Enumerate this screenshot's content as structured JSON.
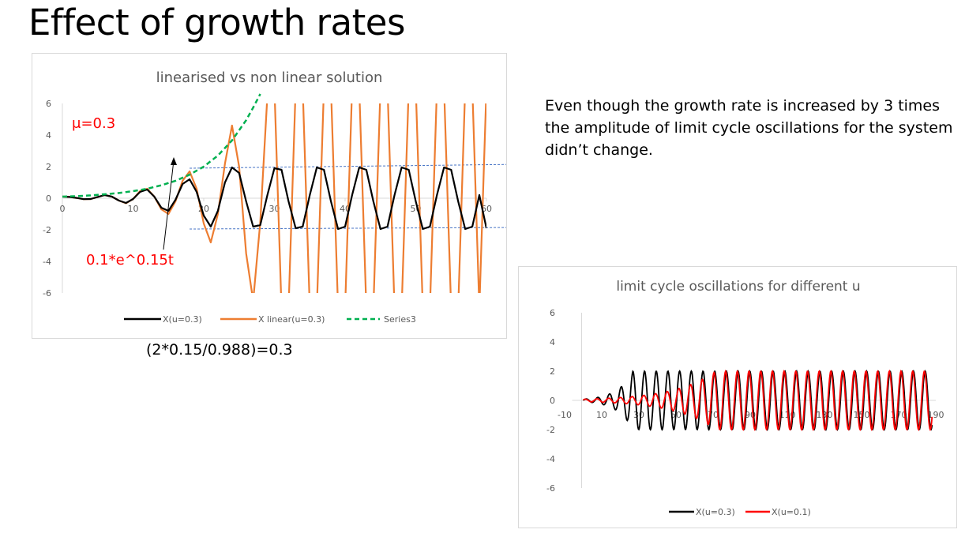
{
  "slide": {
    "title": "Effect of growth rates",
    "note": "Even though the growth rate is increased by 3 times the amplitude of limit cycle oscillations for the system didn’t change.",
    "formula": "(2*0.15/0.988)=0.3"
  },
  "colors": {
    "black_series": "#000000",
    "orange_series": "#ed7d31",
    "green_series": "#00b050",
    "red_series": "#ff0000",
    "annotation_red": "#ff0000",
    "dashed_blue": "#4472c4",
    "axis_text": "#595959",
    "gridline": "#d9d9d9"
  },
  "chart_data": [
    {
      "type": "line",
      "title": "linearised vs non linear solution",
      "xlabel": "",
      "ylabel": "",
      "xlim": [
        0,
        60
      ],
      "ylim": [
        -6,
        6
      ],
      "x_ticks": [
        0,
        10,
        20,
        30,
        40,
        50,
        60
      ],
      "y_ticks": [
        6,
        4,
        2,
        0,
        -2,
        -4,
        -6
      ],
      "grid": false,
      "legend": "bottom",
      "annotations": {
        "mu_label": "μ=0.3",
        "envelope_label": "0.1*e^0.15t",
        "dashed_levels": [
          2,
          -2
        ]
      },
      "series": [
        {
          "name": "X(u=0.3)",
          "style": "solid",
          "points": [
            [
              0,
              0.1
            ],
            [
              1,
              0.08
            ],
            [
              2,
              0.02
            ],
            [
              3,
              -0.06
            ],
            [
              4,
              -0.05
            ],
            [
              5,
              0.08
            ],
            [
              6,
              0.2
            ],
            [
              7,
              0.1
            ],
            [
              8,
              -0.15
            ],
            [
              9,
              -0.3
            ],
            [
              10,
              -0.05
            ],
            [
              11,
              0.4
            ],
            [
              12,
              0.55
            ],
            [
              13,
              0.1
            ],
            [
              14,
              -0.6
            ],
            [
              15,
              -0.8
            ],
            [
              16,
              -0.1
            ],
            [
              17,
              0.9
            ],
            [
              18,
              1.2
            ],
            [
              19,
              0.4
            ],
            [
              20,
              -1.1
            ],
            [
              21,
              -1.8
            ],
            [
              22,
              -0.8
            ],
            [
              23,
              1.0
            ],
            [
              24,
              1.95
            ],
            [
              25,
              1.6
            ],
            [
              26,
              -0.2
            ],
            [
              27,
              -1.8
            ],
            [
              28,
              -1.7
            ],
            [
              29,
              0.2
            ],
            [
              30,
              1.9
            ],
            [
              31,
              1.8
            ],
            [
              32,
              -0.2
            ],
            [
              33,
              -1.9
            ],
            [
              34,
              -1.8
            ],
            [
              35,
              0.2
            ],
            [
              36,
              1.95
            ],
            [
              37,
              1.8
            ],
            [
              38,
              -0.2
            ],
            [
              39,
              -1.95
            ],
            [
              40,
              -1.8
            ],
            [
              41,
              0.2
            ],
            [
              42,
              1.95
            ],
            [
              43,
              1.8
            ],
            [
              44,
              -0.2
            ],
            [
              45,
              -1.95
            ],
            [
              46,
              -1.8
            ],
            [
              47,
              0.2
            ],
            [
              48,
              1.95
            ],
            [
              49,
              1.8
            ],
            [
              50,
              -0.2
            ],
            [
              51,
              -1.95
            ],
            [
              52,
              -1.8
            ],
            [
              53,
              0.2
            ],
            [
              54,
              1.95
            ],
            [
              55,
              1.8
            ],
            [
              56,
              -0.2
            ],
            [
              57,
              -1.95
            ],
            [
              58,
              -1.8
            ],
            [
              59,
              0.2
            ],
            [
              60,
              -1.9
            ]
          ]
        },
        {
          "name": "X linear(u=0.3)",
          "style": "solid",
          "points": [
            [
              0,
              0.1
            ],
            [
              1,
              0.08
            ],
            [
              2,
              0.02
            ],
            [
              3,
              -0.06
            ],
            [
              4,
              -0.05
            ],
            [
              5,
              0.08
            ],
            [
              6,
              0.2
            ],
            [
              7,
              0.1
            ],
            [
              8,
              -0.15
            ],
            [
              9,
              -0.32
            ],
            [
              10,
              -0.05
            ],
            [
              11,
              0.45
            ],
            [
              12,
              0.6
            ],
            [
              13,
              0.1
            ],
            [
              14,
              -0.7
            ],
            [
              15,
              -1.0
            ],
            [
              16,
              -0.2
            ],
            [
              17,
              1.1
            ],
            [
              18,
              1.7
            ],
            [
              19,
              0.6
            ],
            [
              20,
              -1.6
            ],
            [
              21,
              -2.8
            ],
            [
              22,
              -1.0
            ],
            [
              23,
              2.2
            ],
            [
              24,
              4.6
            ],
            [
              25,
              2.0
            ],
            [
              26,
              -3.5
            ],
            [
              27,
              -6.5
            ],
            [
              28,
              -1.5
            ],
            [
              29,
              6.5
            ],
            [
              30,
              7
            ],
            [
              31,
              -7
            ],
            [
              32,
              -7
            ],
            [
              33,
              7
            ],
            [
              34,
              7
            ],
            [
              35,
              -7
            ],
            [
              36,
              -7
            ],
            [
              37,
              7
            ],
            [
              38,
              7
            ],
            [
              39,
              -7
            ],
            [
              40,
              -7
            ],
            [
              41,
              7
            ],
            [
              42,
              7
            ],
            [
              43,
              -7
            ],
            [
              44,
              -7
            ],
            [
              45,
              7
            ],
            [
              46,
              7
            ],
            [
              47,
              -7
            ],
            [
              48,
              -7
            ],
            [
              49,
              7
            ],
            [
              50,
              7
            ],
            [
              51,
              -7
            ],
            [
              52,
              -7
            ],
            [
              53,
              7
            ],
            [
              54,
              7
            ],
            [
              55,
              -7
            ],
            [
              56,
              -7
            ],
            [
              57,
              7
            ],
            [
              58,
              7
            ],
            [
              59,
              -7
            ],
            [
              60,
              7
            ]
          ]
        },
        {
          "name": "Series3",
          "style": "dashed",
          "points": [
            [
              0,
              0.1
            ],
            [
              2,
              0.13
            ],
            [
              4,
              0.18
            ],
            [
              6,
              0.25
            ],
            [
              8,
              0.33
            ],
            [
              10,
              0.45
            ],
            [
              12,
              0.6
            ],
            [
              14,
              0.82
            ],
            [
              16,
              1.1
            ],
            [
              18,
              1.49
            ],
            [
              20,
              2.0
            ],
            [
              22,
              2.7
            ],
            [
              24,
              3.66
            ],
            [
              26,
              4.94
            ],
            [
              27,
              5.74
            ],
            [
              28,
              6.6
            ]
          ]
        }
      ]
    },
    {
      "type": "line",
      "title": "limit cycle oscillations for different u",
      "xlabel": "",
      "ylabel": "",
      "xlim": [
        -10,
        190
      ],
      "ylim": [
        -6,
        6
      ],
      "x_ticks": [
        -10,
        10,
        30,
        50,
        70,
        90,
        110,
        130,
        150,
        170,
        190
      ],
      "x_tick_labels": [
        "-10",
        "10",
        "30",
        "50",
        "70",
        "90",
        "110",
        "130",
        "150",
        "170",
        "190"
      ],
      "y_ticks": [
        6,
        4,
        2,
        0,
        -2,
        -4,
        -6
      ],
      "grid": false,
      "legend": "bottom",
      "series": [
        {
          "name": "X(u=0.3)",
          "style": "solid",
          "model": {
            "period": 6.3,
            "amplitude": 2.0,
            "phase": 0
          }
        },
        {
          "name": "X(u=0.1)",
          "style": "solid",
          "model": {
            "period": 6.3,
            "amplitude": 2.0,
            "phase": 0.4
          }
        }
      ]
    }
  ]
}
